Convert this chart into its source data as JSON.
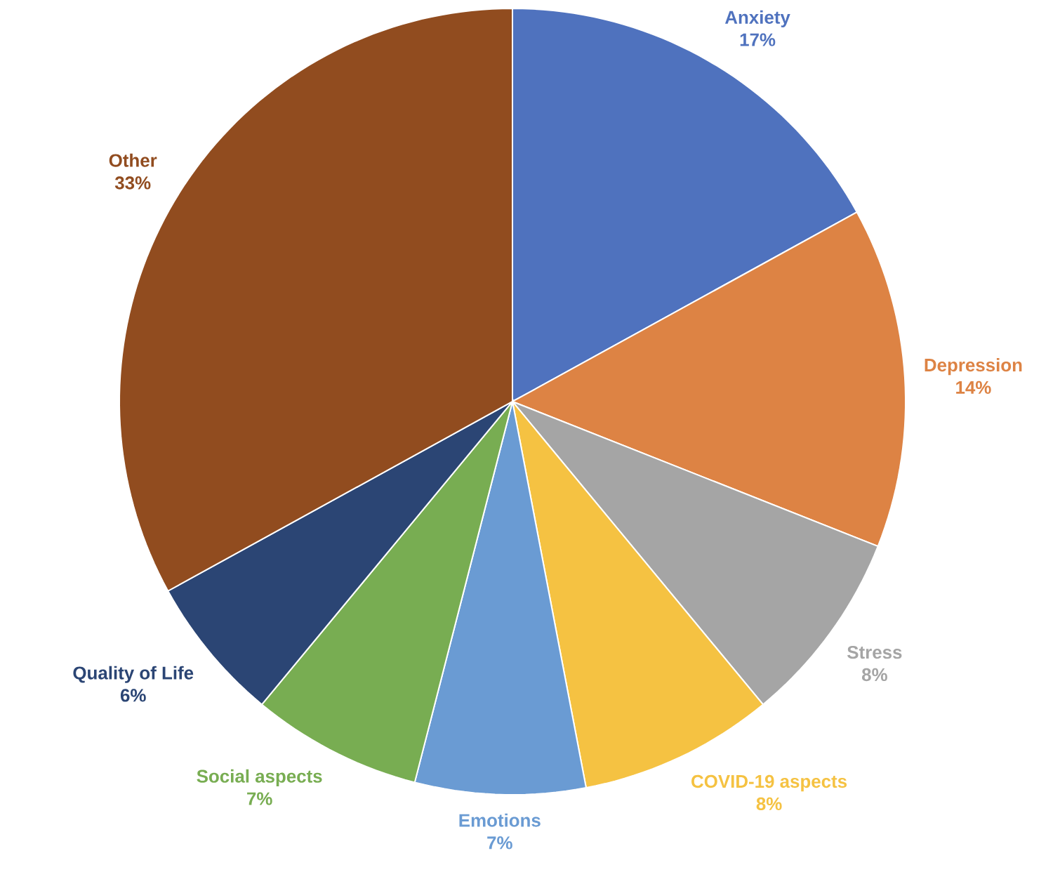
{
  "chart_data": {
    "type": "pie",
    "categories": [
      "Anxiety",
      "Depression",
      "Stress",
      "COVID-19 aspects",
      "Emotions",
      "Social aspects",
      "Quality of Life",
      "Other"
    ],
    "values": [
      17,
      14,
      8,
      8,
      7,
      7,
      6,
      33
    ],
    "value_labels": [
      "17%",
      "14%",
      "8%",
      "8%",
      "7%",
      "7%",
      "6%",
      "33%"
    ],
    "colors": [
      "#4f72be",
      "#dd8344",
      "#a5a5a5",
      "#f5c242",
      "#6a9bd3",
      "#78ad52",
      "#2b4574",
      "#914c1f"
    ]
  }
}
